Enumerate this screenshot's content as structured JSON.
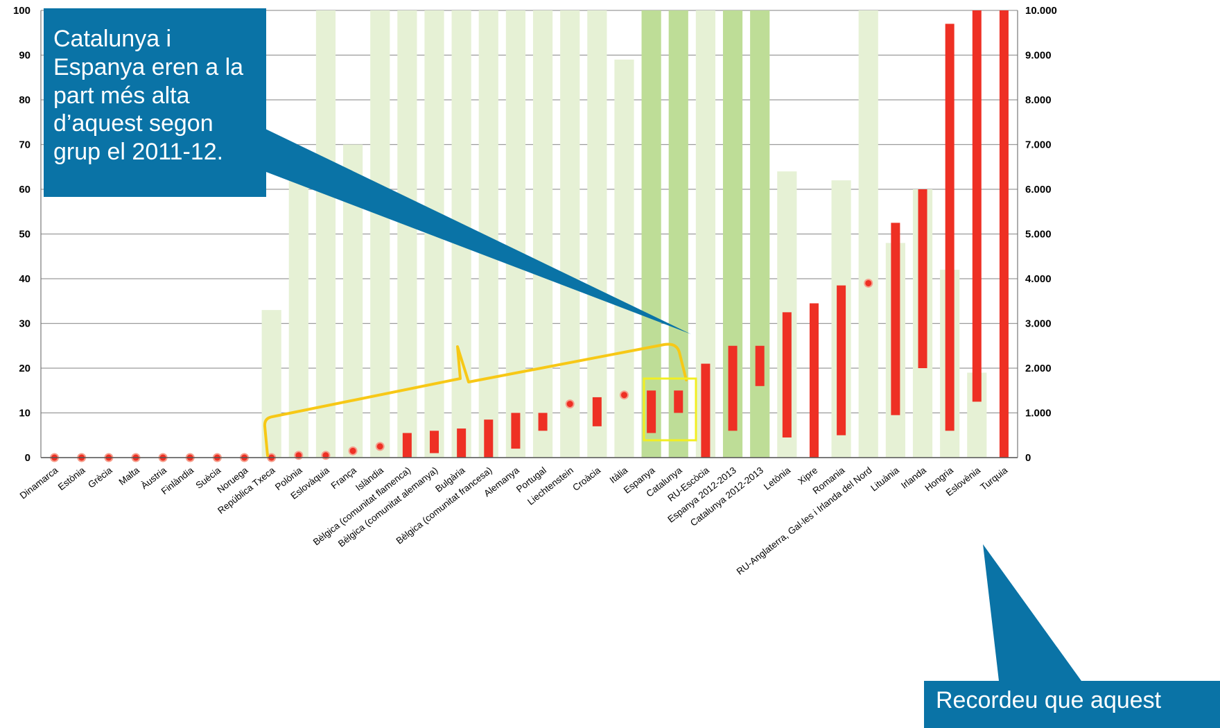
{
  "chart_data": {
    "type": "bar",
    "categories": [
      "Dinamarca",
      "Estònia",
      "Grècia",
      "Malta",
      "Àustria",
      "Finlàndia",
      "Suècia",
      "Noruega",
      "República Txeca",
      "Polònia",
      "Eslovàquia",
      "França",
      "Islàndia",
      "Bèlgica (comunitat flamenca)",
      "Bèlgica (comunitat alemanya)",
      "Bulgària",
      "Bèlgica (comunitat francesa)",
      "Alemanya",
      "Portugal",
      "Liechtenstein",
      "Croàcia",
      "Itàlia",
      "Espanya",
      "Catalunya",
      "RU-Escòcia",
      "Espanya 2012-2013",
      "Catalunya 2012-2013",
      "Letònia",
      "Xipre",
      "Romania",
      "RU-Anglaterra, Gal·les i Irlanda del Nord",
      "Lituània",
      "Irlanda",
      "Hongria",
      "Eslovènia",
      "Turquia"
    ],
    "series": [
      {
        "axis": "left",
        "style": "background-bar",
        "values": [
          null,
          null,
          null,
          null,
          null,
          null,
          null,
          null,
          33,
          65,
          100,
          70,
          100,
          100,
          100,
          100,
          100,
          100,
          100,
          100,
          100,
          89,
          100,
          100,
          100,
          100,
          100,
          64,
          null,
          62,
          100,
          48,
          60,
          42,
          19,
          null
        ],
        "highlight": [
          false,
          false,
          false,
          false,
          false,
          false,
          false,
          false,
          false,
          false,
          false,
          false,
          false,
          false,
          false,
          false,
          false,
          false,
          false,
          false,
          false,
          false,
          true,
          true,
          false,
          true,
          true,
          false,
          false,
          false,
          false,
          false,
          false,
          false,
          false,
          false
        ]
      },
      {
        "axis": "right",
        "style": "range",
        "low": [
          0,
          0,
          0,
          0,
          0,
          0,
          0,
          0,
          0,
          50,
          50,
          150,
          250,
          0,
          100,
          0,
          0,
          200,
          600,
          1200,
          700,
          1400,
          550,
          1000,
          0,
          600,
          1600,
          450,
          0,
          500,
          3900,
          950,
          2000,
          600,
          1250,
          0
        ],
        "high": [
          0,
          0,
          0,
          0,
          0,
          0,
          0,
          0,
          0,
          50,
          50,
          150,
          250,
          550,
          600,
          650,
          850,
          1000,
          1000,
          1200,
          1350,
          1400,
          1500,
          1500,
          2100,
          2500,
          2500,
          3250,
          3450,
          3850,
          3900,
          5250,
          6000,
          9700,
          10000,
          10000
        ]
      }
    ],
    "yleft": {
      "ticks": [
        "0",
        "10",
        "20",
        "30",
        "40",
        "50",
        "60",
        "70",
        "80",
        "90",
        "100"
      ],
      "ylim": [
        0,
        100
      ]
    },
    "yright": {
      "ticks": [
        "0",
        "1.000",
        "2.000",
        "3.000",
        "4.000",
        "5.000",
        "6.000",
        "7.000",
        "8.000",
        "9.000",
        "10.000"
      ],
      "ylim": [
        0,
        10000
      ]
    },
    "grid": true,
    "colors": {
      "background_bar": "#e6f1d5",
      "highlight_bar": "#bedd97",
      "range_bar": "#ee3024",
      "point": "#ee3024",
      "bracket": "#f7c816",
      "box": "#f2ee22",
      "callout": "#0a73a6",
      "gridline": "#9a9a9a"
    }
  },
  "callouts": {
    "callout1": "Catalunya i Espanya eren a la part més alta d’aquest segon grup el 2011-12.",
    "callout2": "Recordeu que aquest"
  }
}
